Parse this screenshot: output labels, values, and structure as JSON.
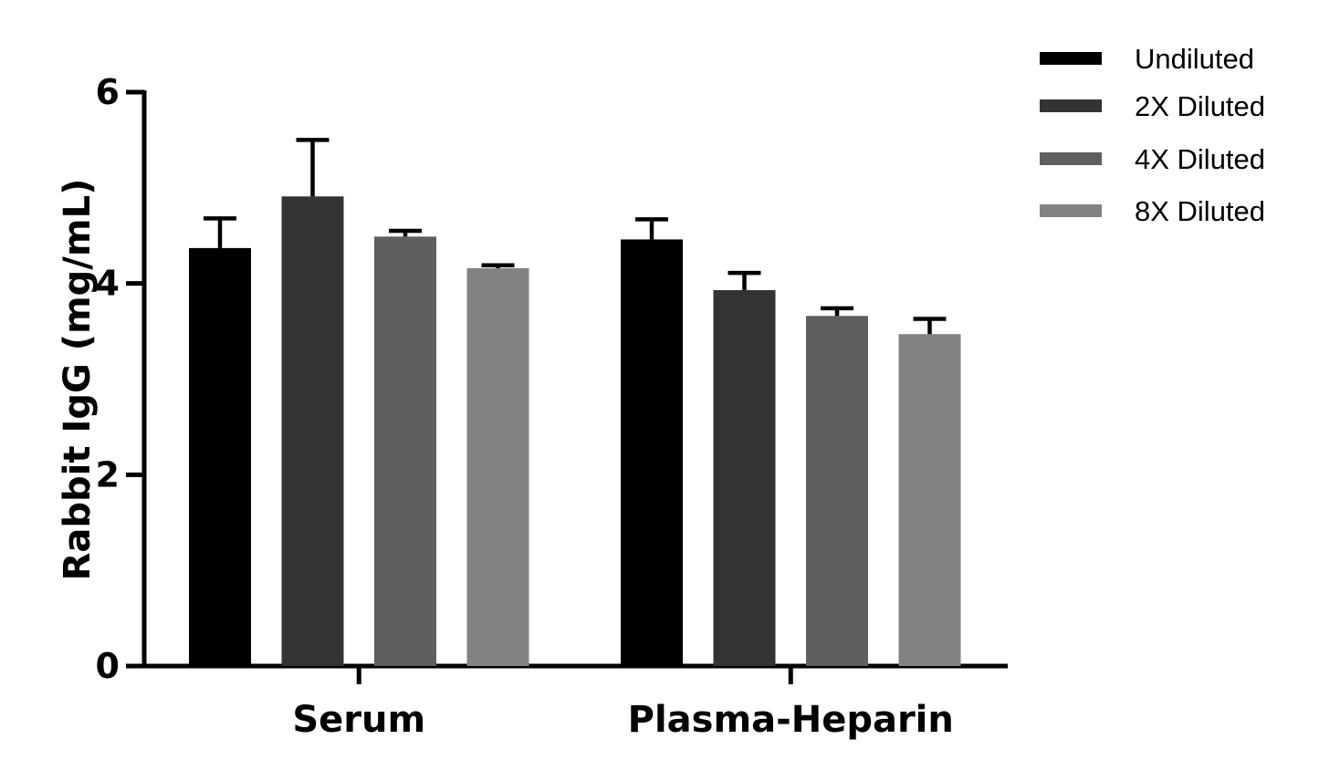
{
  "chart_data": {
    "type": "bar",
    "ylabel": "Rabbit IgG (mg/mL)",
    "xlabel": "",
    "ylim": [
      0,
      6
    ],
    "yticks": [
      0,
      2,
      4,
      6
    ],
    "categories": [
      "Serum",
      "Plasma-Heparin"
    ],
    "series": [
      {
        "name": "Undiluted",
        "color": "#000000",
        "values": [
          4.37,
          4.46
        ],
        "errors": [
          0.31,
          0.21
        ]
      },
      {
        "name": "2X Diluted",
        "color": "#333333",
        "values": [
          4.91,
          3.93
        ],
        "errors": [
          0.59,
          0.18
        ]
      },
      {
        "name": "4X Diluted",
        "color": "#5f5f5f",
        "values": [
          4.49,
          3.66
        ],
        "errors": [
          0.06,
          0.08
        ]
      },
      {
        "name": "8X Diluted",
        "color": "#828282",
        "values": [
          4.16,
          3.47
        ],
        "errors": [
          0.03,
          0.16
        ]
      }
    ],
    "legend_position": "top-right",
    "grid": false
  }
}
